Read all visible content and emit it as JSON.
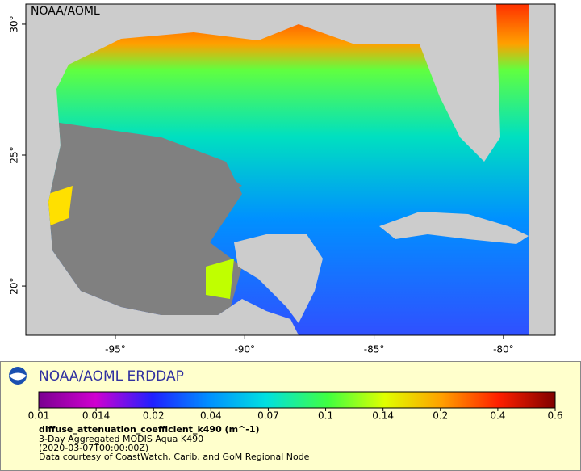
{
  "map": {
    "corner_label": "NOAA/AOML",
    "xlim": [
      -98.46,
      -78.0
    ],
    "ylim": [
      18.12,
      30.77
    ],
    "xticks": [
      {
        "value": -95,
        "label": "-95°"
      },
      {
        "value": -90,
        "label": "-90°"
      },
      {
        "value": -85,
        "label": "-85°"
      },
      {
        "value": -80,
        "label": "-80°"
      }
    ],
    "yticks": [
      {
        "value": 20,
        "label": "20°"
      },
      {
        "value": 25,
        "label": "25°"
      },
      {
        "value": 30,
        "label": "30°"
      }
    ]
  },
  "legend": {
    "title": "NOAA/AOML ERDDAP",
    "colorbar_ticks": [
      0.01,
      0.014,
      0.02,
      0.04,
      0.07,
      0.1,
      0.14,
      0.2,
      0.4,
      0.6
    ],
    "variable": "diffuse_attenuation_coefficient_k490 (m^-1)",
    "lines": [
      "3-Day Aggregated MODIS Aqua K490",
      "(2020-03-07T00:00:00Z)",
      "Data courtesy of CoastWatch, Carib. and GoM Regional Node"
    ]
  }
}
